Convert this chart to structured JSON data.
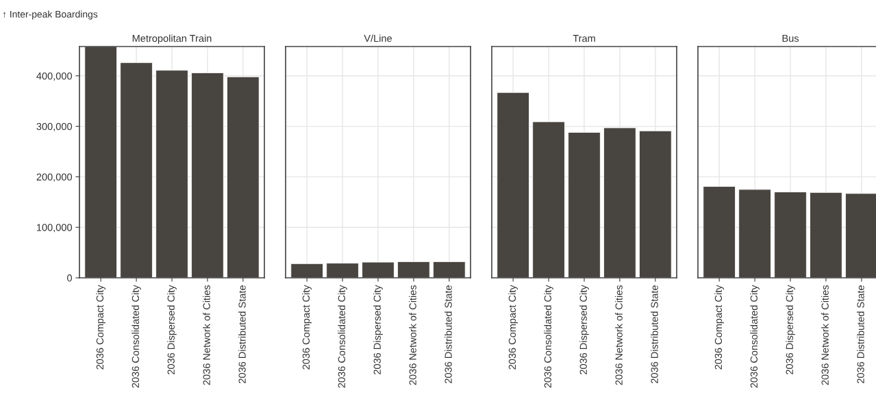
{
  "chart_data": [
    {
      "type": "bar",
      "title": "Metropolitan Train",
      "ylabel": "↑ Inter-peak Boardings",
      "categories": [
        "2036 Compact City",
        "2036 Consolidated City",
        "2036 Dispersed City",
        "2036 Network of Cities",
        "2036 Distributed State"
      ],
      "values": [
        458000,
        426000,
        411000,
        406000,
        398000
      ],
      "color": "#48443f",
      "ylim": [
        0,
        458000
      ],
      "yticks": [
        {
          "value": 0,
          "label": "0"
        },
        {
          "value": 100000,
          "label": "100,000"
        },
        {
          "value": 200000,
          "label": "200,000"
        },
        {
          "value": 300000,
          "label": "300,000"
        },
        {
          "value": 400000,
          "label": "400,000"
        }
      ],
      "grid": true
    },
    {
      "type": "bar",
      "title": "V/Line",
      "categories": [
        "2036 Compact City",
        "2036 Consolidated City",
        "2036 Dispersed City",
        "2036 Network of Cities",
        "2036 Distributed State"
      ],
      "values": [
        28000,
        29000,
        31000,
        32000,
        32000
      ],
      "color": "#48443f",
      "ylim": [
        0,
        458000
      ],
      "yticks": [
        0,
        100000,
        200000,
        300000,
        400000
      ],
      "tick_labels": "x",
      "grid": true
    },
    {
      "type": "bar",
      "title": "Tram",
      "categories": [
        "2036 Compact City",
        "2036 Consolidated City",
        "2036 Dispersed City",
        "2036 Network of Cities",
        "2036 Distributed State"
      ],
      "values": [
        367000,
        309000,
        288000,
        297000,
        291000
      ],
      "color": "#48443f",
      "ylim": [
        0,
        458000
      ],
      "yticks": [
        0,
        100000,
        200000,
        300000,
        400000
      ],
      "tick_labels": "x",
      "grid": true
    },
    {
      "type": "bar",
      "title": "Bus",
      "categories": [
        "2036 Compact City",
        "2036 Consolidated City",
        "2036 Dispersed City",
        "2036 Network of Cities",
        "2036 Distributed State"
      ],
      "values": [
        181000,
        175000,
        170000,
        169000,
        167000
      ],
      "color": "#48443f",
      "ylim": [
        0,
        458000
      ],
      "yticks": [
        0,
        100000,
        200000,
        300000,
        400000
      ],
      "tick_labels": "x",
      "grid": true
    }
  ]
}
